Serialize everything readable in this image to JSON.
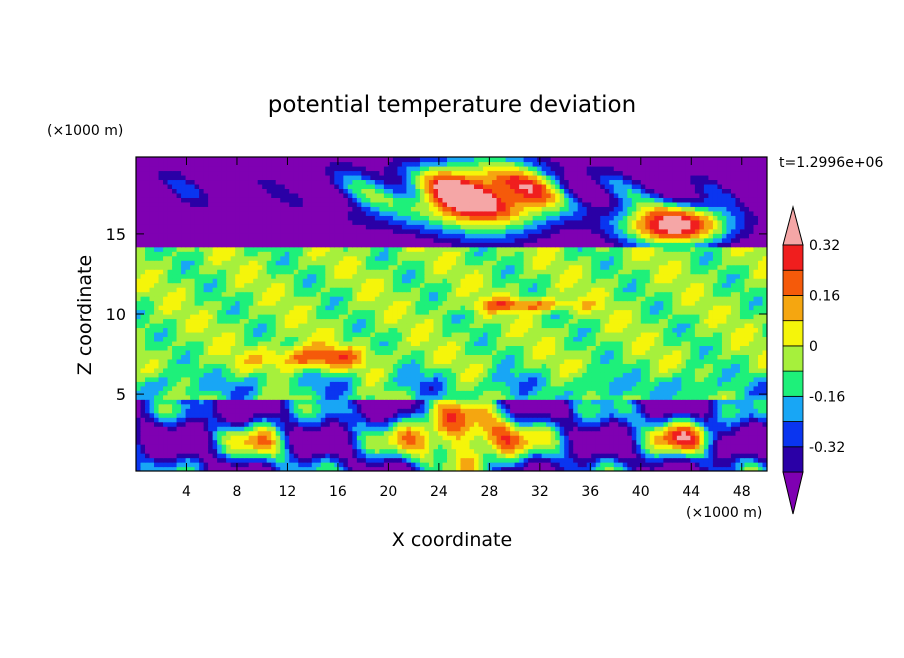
{
  "chart_data": {
    "type": "heatmap",
    "title": "potential temperature deviation",
    "xlabel": "X coordinate",
    "ylabel": "Z coordinate",
    "x_unit": "(×1000 m)",
    "y_unit": "(×1000 m)",
    "time_label": "t=1.2996e+06",
    "xlim": [
      0,
      50
    ],
    "ylim": [
      0.2,
      19.8
    ],
    "x_ticks": [
      4,
      8,
      12,
      16,
      20,
      24,
      28,
      32,
      36,
      40,
      44,
      48
    ],
    "y_ticks": [
      5,
      10,
      15
    ],
    "colorbar": {
      "levels": [
        -0.4,
        -0.32,
        -0.24,
        -0.16,
        -0.08,
        0,
        0.08,
        0.16,
        0.24,
        0.32,
        0.4
      ],
      "tick_labels": [
        "-0.32",
        "-0.16",
        "0",
        "0.16",
        "0.32"
      ],
      "tick_values": [
        -0.32,
        -0.16,
        0,
        0.16,
        0.32
      ],
      "colors": [
        "#7f00b2",
        "#2a00a6",
        "#0a35f0",
        "#18a6f5",
        "#1ef07a",
        "#a6f03c",
        "#f5f50a",
        "#f5a610",
        "#f55a0a",
        "#f01e1e",
        "#f5a6a6"
      ],
      "extend": "both"
    }
  }
}
